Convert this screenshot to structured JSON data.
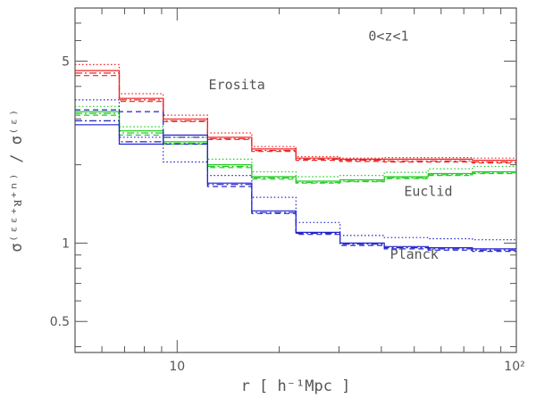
{
  "chart_data": {
    "type": "line",
    "step": true,
    "xlog": true,
    "ylog": true,
    "xlim": [
      5,
      100
    ],
    "ylim": [
      0.38,
      8
    ],
    "bin_edges": [
      5,
      6.75,
      9.1,
      12.3,
      16.6,
      22.4,
      30.2,
      40.8,
      55,
      74.2,
      100
    ],
    "xlabel": "r [ h⁻¹Mpc ]",
    "ylabel": "σ⁽ᵋᵋ⁺ᴚ⁺ⁿ⁾ / σ⁽ᵋ⁾",
    "xticks": {
      "major": [
        10,
        100
      ],
      "labels": [
        "10",
        "10²"
      ],
      "minor": [
        6,
        7,
        8,
        9,
        20,
        30,
        40,
        50,
        60,
        70,
        80,
        90
      ]
    },
    "yticks": {
      "major": [
        0.5,
        1,
        5
      ],
      "labels": [
        "0.5",
        "1",
        "5"
      ],
      "minor": [
        0.4,
        0.6,
        0.7,
        0.8,
        0.9,
        2,
        3,
        4,
        6,
        7,
        8
      ]
    },
    "annotations": [
      {
        "text": "0<z<1",
        "x": 42,
        "y": 6.0
      },
      {
        "text": "Erosita",
        "x": 15,
        "y": 3.9
      },
      {
        "text": "Euclid",
        "x": 55,
        "y": 1.52
      },
      {
        "text": "Planck",
        "x": 50,
        "y": 0.87
      }
    ],
    "colors": {
      "red": "#ee2222",
      "green": "#22cc22",
      "blue": "#2222cc"
    },
    "series": [
      {
        "color": "red",
        "dash": "solid",
        "values": [
          4.6,
          3.6,
          3.0,
          2.55,
          2.3,
          2.12,
          2.1,
          2.1,
          2.1,
          2.08
        ]
      },
      {
        "color": "red",
        "dash": "dotted",
        "values": [
          4.85,
          3.75,
          3.1,
          2.65,
          2.35,
          2.15,
          2.12,
          2.13,
          2.13,
          2.12
        ]
      },
      {
        "color": "red",
        "dash": "dashed",
        "values": [
          4.4,
          3.5,
          2.93,
          2.5,
          2.25,
          2.08,
          2.06,
          2.05,
          2.05,
          2.03
        ]
      },
      {
        "color": "red",
        "dash": "dashdot",
        "values": [
          4.5,
          3.55,
          2.95,
          2.52,
          2.27,
          2.1,
          2.08,
          2.07,
          2.07,
          2.05
        ]
      },
      {
        "color": "green",
        "dash": "solid",
        "values": [
          3.2,
          2.7,
          2.45,
          2.0,
          1.8,
          1.73,
          1.75,
          1.8,
          1.85,
          1.88
        ]
      },
      {
        "color": "green",
        "dash": "dotted",
        "values": [
          3.35,
          2.8,
          2.55,
          2.1,
          1.88,
          1.8,
          1.82,
          1.87,
          1.93,
          1.97
        ]
      },
      {
        "color": "green",
        "dash": "dashed",
        "values": [
          3.1,
          2.6,
          2.4,
          1.95,
          1.76,
          1.7,
          1.72,
          1.77,
          1.82,
          1.85
        ]
      },
      {
        "color": "green",
        "dash": "dashdot",
        "values": [
          3.15,
          2.65,
          2.42,
          1.97,
          1.78,
          1.71,
          1.73,
          1.78,
          1.83,
          1.86
        ]
      },
      {
        "color": "blue",
        "dash": "solid",
        "values": [
          2.85,
          2.4,
          2.6,
          1.7,
          1.33,
          1.1,
          1.0,
          0.97,
          0.96,
          0.95
        ]
      },
      {
        "color": "blue",
        "dash": "dotted",
        "values": [
          3.55,
          2.55,
          2.05,
          1.82,
          1.5,
          1.2,
          1.07,
          1.05,
          1.04,
          1.03
        ]
      },
      {
        "color": "blue",
        "dash": "dashed",
        "values": [
          3.25,
          3.2,
          2.4,
          1.65,
          1.3,
          1.08,
          0.98,
          0.95,
          0.94,
          0.93
        ]
      },
      {
        "color": "blue",
        "dash": "dashdot",
        "values": [
          2.95,
          2.45,
          2.55,
          1.68,
          1.31,
          1.09,
          0.99,
          0.96,
          0.95,
          0.94
        ]
      }
    ]
  }
}
